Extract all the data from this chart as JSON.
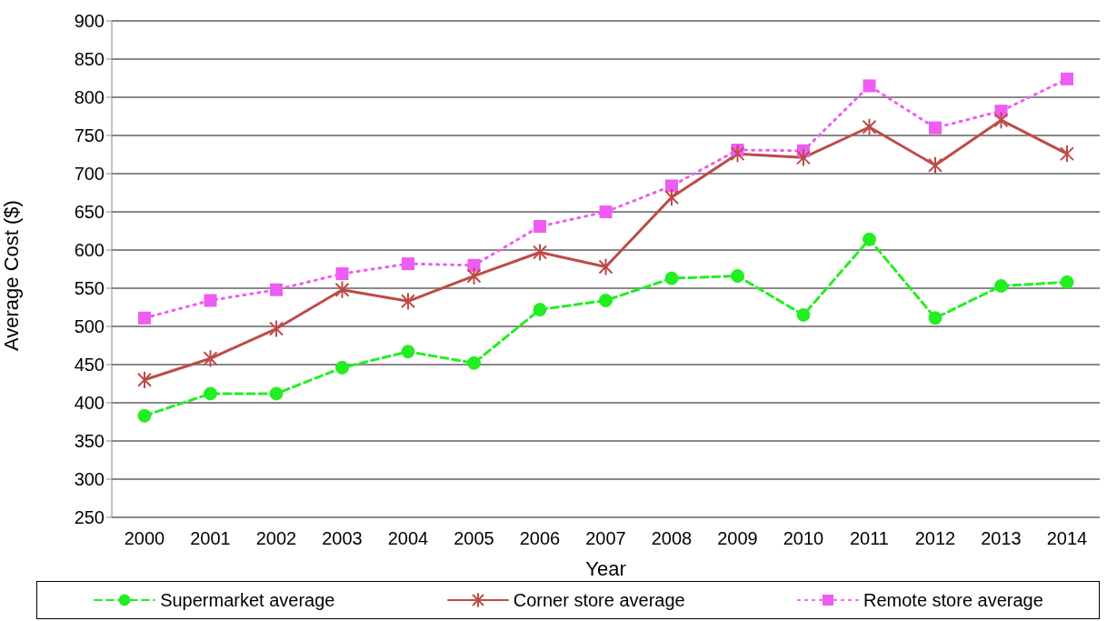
{
  "chart_data": {
    "type": "line",
    "xlabel": "Year",
    "ylabel": "Average Cost ($)",
    "categories": [
      "2000",
      "2001",
      "2002",
      "2003",
      "2004",
      "2005",
      "2006",
      "2007",
      "2008",
      "2009",
      "2010",
      "2011",
      "2012",
      "2013",
      "2014"
    ],
    "series": [
      {
        "name": "Supermarket average",
        "color": "#22ee22",
        "marker": "circle",
        "line_style": "dashed",
        "values": [
          383,
          412,
          412,
          446,
          467,
          452,
          522,
          534,
          563,
          566,
          515,
          614,
          511,
          553,
          558
        ]
      },
      {
        "name": "Corner store average",
        "color": "#be4b48",
        "marker": "cross",
        "line_style": "solid",
        "values": [
          430,
          458,
          497,
          548,
          533,
          566,
          597,
          578,
          669,
          726,
          721,
          761,
          711,
          770,
          726
        ]
      },
      {
        "name": "Remote store average",
        "color": "#ee5cf2",
        "marker": "square",
        "line_style": "dotted",
        "values": [
          511,
          534,
          548,
          569,
          582,
          580,
          631,
          650,
          684,
          731,
          730,
          815,
          760,
          782,
          824
        ]
      }
    ],
    "ylim": [
      250,
      900
    ],
    "yticks": [
      250,
      300,
      350,
      400,
      450,
      500,
      550,
      600,
      650,
      700,
      750,
      800,
      850,
      900
    ],
    "grid": "y",
    "legend": "bottom"
  }
}
